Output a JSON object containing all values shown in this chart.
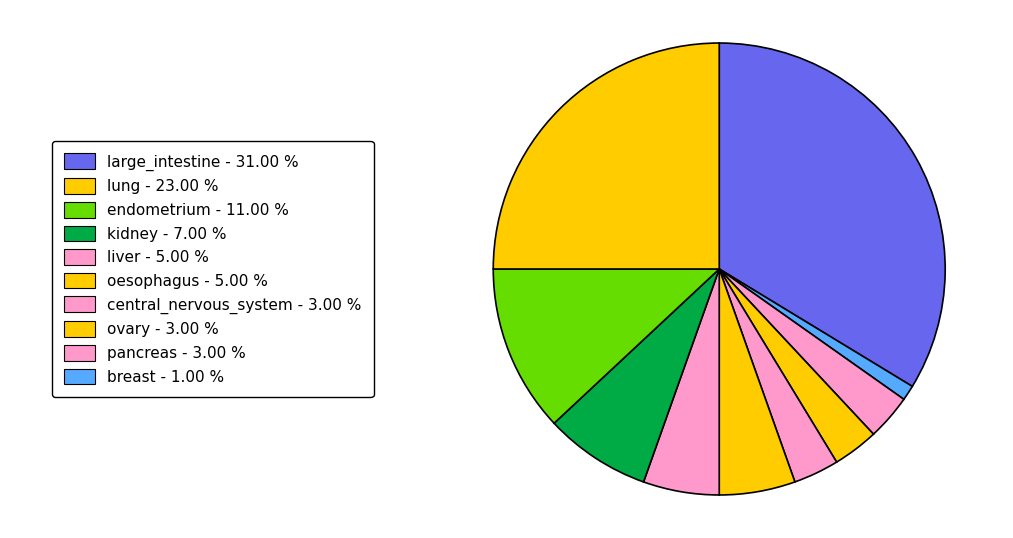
{
  "labels": [
    "large_intestine",
    "breast",
    "pancreas",
    "ovary",
    "central_nervous_system",
    "oesophagus",
    "liver",
    "kidney",
    "endometrium",
    "lung"
  ],
  "values": [
    31.0,
    1.0,
    3.0,
    3.0,
    3.0,
    5.0,
    5.0,
    7.0,
    11.0,
    23.0
  ],
  "colors": [
    "#6666ee",
    "#55aaff",
    "#ff99cc",
    "#ffcc00",
    "#ff99cc",
    "#ffcc00",
    "#ff99cc",
    "#00aa44",
    "#66dd00",
    "#ffcc00"
  ],
  "legend_colors": [
    "#6666ee",
    "#ffcc00",
    "#66dd00",
    "#00aa44",
    "#ff99cc",
    "#ffcc00",
    "#ff99cc",
    "#ffcc00",
    "#ff99cc",
    "#55aaff"
  ],
  "legend_labels": [
    "large_intestine - 31.00 %",
    "lung - 23.00 %",
    "endometrium - 11.00 %",
    "kidney - 7.00 %",
    "liver - 5.00 %",
    "oesophagus - 5.00 %",
    "central_nervous_system - 3.00 %",
    "ovary - 3.00 %",
    "pancreas - 3.00 %",
    "breast - 1.00 %"
  ],
  "startangle": 90,
  "figsize": [
    10.13,
    5.38
  ],
  "dpi": 100
}
